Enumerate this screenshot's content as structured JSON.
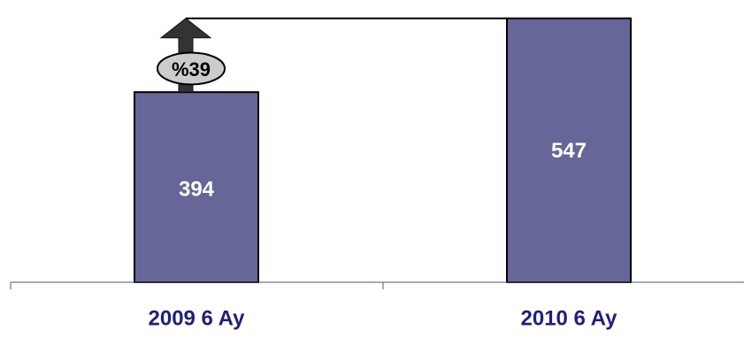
{
  "chart_data": {
    "type": "bar",
    "categories": [
      "2009 6 Ay",
      "2010 6 Ay"
    ],
    "values": [
      394,
      547
    ],
    "data_labels": [
      "394",
      "547"
    ],
    "change_badge": "%39",
    "title": "",
    "xlabel": "",
    "ylabel": "",
    "ylim": [
      0,
      574
    ],
    "grid": false,
    "legend": "none",
    "colors": {
      "bar": "#666699",
      "bar_outline": "#000000",
      "category_text": "#1f1f7a",
      "arrow": "#333333",
      "badge": "#cccccc"
    },
    "icons": [
      "up-arrow-icon"
    ]
  }
}
